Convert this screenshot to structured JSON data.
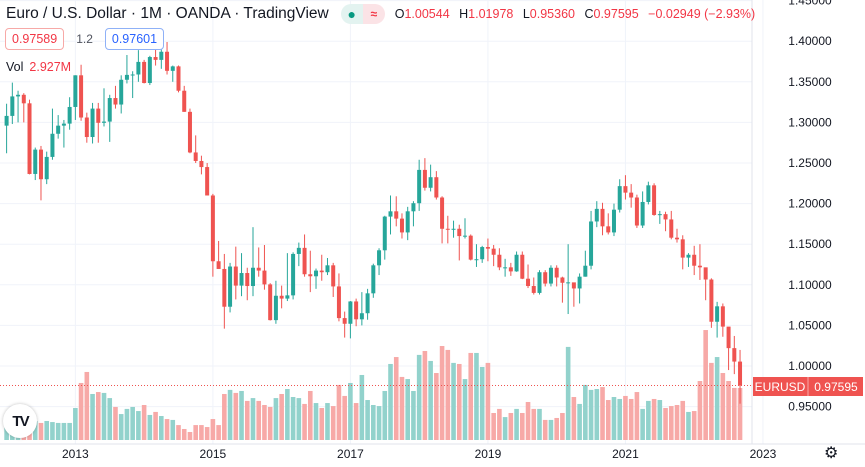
{
  "header": {
    "title": "Euro / U.S. Dollar · 1M · OANDA · TradingView",
    "status_icon": "market-open-dot-icon",
    "wave_icon": "≈",
    "ohlc": {
      "o_label": "O",
      "o": "1.00544",
      "h_label": "H",
      "h": "1.01978",
      "l_label": "L",
      "l": "0.95360",
      "c_label": "C",
      "c": "0.97595",
      "change": "−0.02949 (−2.93%)"
    }
  },
  "quote": {
    "sell": "0.97589",
    "spread": "1.2",
    "buy": "0.97601"
  },
  "volume_legend": {
    "label": "Vol",
    "value": "2.927M"
  },
  "price_label": {
    "symbol": "EURUSD",
    "value": "0.97595"
  },
  "logo_text": "TV",
  "colors": {
    "up": "#26a69a",
    "down": "#ef5350",
    "up_vol": "#92d2cc",
    "down_vol": "#f7a9a7",
    "grid": "#f0f3fa",
    "price_line": "#ef5350"
  },
  "chart_data": {
    "type": "candlestick",
    "title": "Euro / U.S. Dollar · 1M · OANDA",
    "interval": "1M",
    "start": "2012-01",
    "first_open": 1.296,
    "close": [
      1.308,
      1.332,
      1.334,
      1.3235,
      1.2365,
      1.2665,
      1.23,
      1.2575,
      1.286,
      1.296,
      1.2985,
      1.319,
      1.358,
      1.306,
      1.282,
      1.317,
      1.2995,
      1.301,
      1.33,
      1.322,
      1.3525,
      1.3585,
      1.359,
      1.3745,
      1.3485,
      1.3805,
      1.377,
      1.387,
      1.3635,
      1.369,
      1.339,
      1.313,
      1.263,
      1.2525,
      1.245,
      1.21,
      1.129,
      1.1195,
      1.073,
      1.1225,
      1.099,
      1.1145,
      1.0985,
      1.121,
      1.1175,
      1.1005,
      1.0565,
      1.0865,
      1.083,
      1.087,
      1.138,
      1.1455,
      1.113,
      1.1105,
      1.1175,
      1.1155,
      1.124,
      1.098,
      1.059,
      1.052,
      1.0795,
      1.0575,
      1.065,
      1.0895,
      1.124,
      1.1425,
      1.184,
      1.1905,
      1.1815,
      1.1645,
      1.1905,
      1.2005,
      1.2415,
      1.2195,
      1.2325,
      1.2075,
      1.169,
      1.1685,
      1.169,
      1.16,
      1.1605,
      1.131,
      1.1315,
      1.1465,
      1.1445,
      1.137,
      1.1215,
      1.1215,
      1.1165,
      1.137,
      1.1075,
      1.0985,
      1.09,
      1.1155,
      1.1015,
      1.121,
      1.109,
      1.1025,
      1.103,
      1.0955,
      1.11,
      1.1235,
      1.178,
      1.1935,
      1.172,
      1.1645,
      1.1925,
      1.2215,
      1.2135,
      1.2075,
      1.173,
      1.202,
      1.2225,
      1.186,
      1.187,
      1.1805,
      1.158,
      1.156,
      1.1335,
      1.137,
      1.1235,
      1.1215,
      1.1065,
      1.0545,
      1.0735,
      1.0485,
      1.022,
      1.00544,
      0.97595
    ],
    "high": [
      1.323,
      1.349,
      1.339,
      1.336,
      1.328,
      1.269,
      1.271,
      1.264,
      1.317,
      1.309,
      1.303,
      1.331,
      1.358,
      1.371,
      1.312,
      1.324,
      1.324,
      1.342,
      1.334,
      1.345,
      1.358,
      1.383,
      1.363,
      1.389,
      1.377,
      1.382,
      1.395,
      1.392,
      1.399,
      1.37,
      1.37,
      1.345,
      1.317,
      1.284,
      1.259,
      1.25,
      1.212,
      1.154,
      1.138,
      1.127,
      1.147,
      1.139,
      1.121,
      1.171,
      1.146,
      1.149,
      1.102,
      1.105,
      1.099,
      1.139,
      1.14,
      1.152,
      1.162,
      1.142,
      1.12,
      1.137,
      1.133,
      1.127,
      1.114,
      1.067,
      1.08,
      1.083,
      1.091,
      1.095,
      1.126,
      1.145,
      1.185,
      1.21,
      1.209,
      1.188,
      1.196,
      1.203,
      1.254,
      1.256,
      1.248,
      1.24,
      1.209,
      1.185,
      1.179,
      1.174,
      1.182,
      1.162,
      1.15,
      1.148,
      1.157,
      1.149,
      1.145,
      1.132,
      1.127,
      1.141,
      1.141,
      1.125,
      1.109,
      1.118,
      1.118,
      1.124,
      1.124,
      1.11,
      1.15,
      1.102,
      1.114,
      1.142,
      1.191,
      1.203,
      1.201,
      1.188,
      1.2,
      1.23,
      1.235,
      1.224,
      1.211,
      1.215,
      1.227,
      1.225,
      1.191,
      1.19,
      1.191,
      1.169,
      1.161,
      1.139,
      1.148,
      1.15,
      1.119,
      1.108,
      1.079,
      1.077,
      1.048,
      1.037,
      1.01978
    ],
    "low": [
      1.262,
      1.298,
      1.3,
      1.3,
      1.236,
      1.229,
      1.204,
      1.224,
      1.254,
      1.28,
      1.269,
      1.291,
      1.303,
      1.302,
      1.275,
      1.274,
      1.275,
      1.295,
      1.276,
      1.317,
      1.311,
      1.348,
      1.33,
      1.35,
      1.348,
      1.346,
      1.37,
      1.366,
      1.359,
      1.35,
      1.337,
      1.313,
      1.262,
      1.25,
      1.236,
      1.21,
      1.11,
      1.12,
      1.046,
      1.066,
      1.082,
      1.086,
      1.081,
      1.086,
      1.11,
      1.094,
      1.056,
      1.052,
      1.071,
      1.08,
      1.082,
      1.123,
      1.11,
      1.091,
      1.095,
      1.105,
      1.112,
      1.085,
      1.055,
      1.035,
      1.034,
      1.049,
      1.05,
      1.057,
      1.084,
      1.112,
      1.131,
      1.162,
      1.172,
      1.157,
      1.155,
      1.172,
      1.191,
      1.216,
      1.215,
      1.205,
      1.151,
      1.151,
      1.158,
      1.13,
      1.157,
      1.13,
      1.122,
      1.127,
      1.129,
      1.123,
      1.118,
      1.11,
      1.111,
      1.116,
      1.107,
      1.096,
      1.088,
      1.088,
      1.098,
      1.098,
      1.098,
      1.078,
      1.064,
      1.073,
      1.077,
      1.11,
      1.119,
      1.171,
      1.161,
      1.162,
      1.16,
      1.189,
      1.205,
      1.195,
      1.17,
      1.17,
      1.199,
      1.185,
      1.175,
      1.166,
      1.156,
      1.152,
      1.119,
      1.122,
      1.112,
      1.106,
      1.081,
      1.047,
      1.035,
      1.036,
      0.995,
      0.99,
      0.9536
    ],
    "volume_millions": [
      0.73,
      0.68,
      0.68,
      0.68,
      0.96,
      1.07,
      0.96,
      1.07,
      1.01,
      0.96,
      0.96,
      0.96,
      1.8,
      3.21,
      3.83,
      2.59,
      2.7,
      2.65,
      2.36,
      1.86,
      1.46,
      1.75,
      1.86,
      1.63,
      1.97,
      1.41,
      1.58,
      1.35,
      1.18,
      1.13,
      0.84,
      0.62,
      0.45,
      0.84,
      0.84,
      0.73,
      1.18,
      0.84,
      2.59,
      2.82,
      2.65,
      2.76,
      2.2,
      2.36,
      2.2,
      1.97,
      1.86,
      2.36,
      2.59,
      2.87,
      2.42,
      2.36,
      2.03,
      2.76,
      2.08,
      1.8,
      2.08,
      1.91,
      3.1,
      2.48,
      3.21,
      2.08,
      3.66,
      2.25,
      1.97,
      1.91,
      2.76,
      4.28,
      4.67,
      3.55,
      3.43,
      2.76,
      4.79,
      5.01,
      4.45,
      3.77,
      5.29,
      5.07,
      4.34,
      4.28,
      3.43,
      4.9,
      4.9,
      4.11,
      4.34,
      1.52,
      1.75,
      1.29,
      1.52,
      1.75,
      1.52,
      2.14,
      1.75,
      1.75,
      1.13,
      1.13,
      1.24,
      1.52,
      5.24,
      2.42,
      2.03,
      3.1,
      2.82,
      2.87,
      2.98,
      2.25,
      2.42,
      2.31,
      2.48,
      2.31,
      2.7,
      1.75,
      2.2,
      2.31,
      2.25,
      1.8,
      1.91,
      1.97,
      2.2,
      1.58,
      1.63,
      3.32,
      6.19,
      4.34,
      4.67,
      3.77,
      3.32,
      2.93,
      2.927
    ],
    "x_ticks": [
      "2013",
      "2015",
      "2017",
      "2019",
      "2021",
      "2023"
    ],
    "y_ticks": [
      "1.45000",
      "1.40000",
      "1.35000",
      "1.30000",
      "1.25000",
      "1.20000",
      "1.15000",
      "1.10000",
      "1.05000",
      "1.00000",
      "0.95000"
    ],
    "ylim": [
      0.91,
      1.45
    ],
    "grid": true,
    "last_price": 0.97595
  },
  "settings_icon": "gear-icon"
}
